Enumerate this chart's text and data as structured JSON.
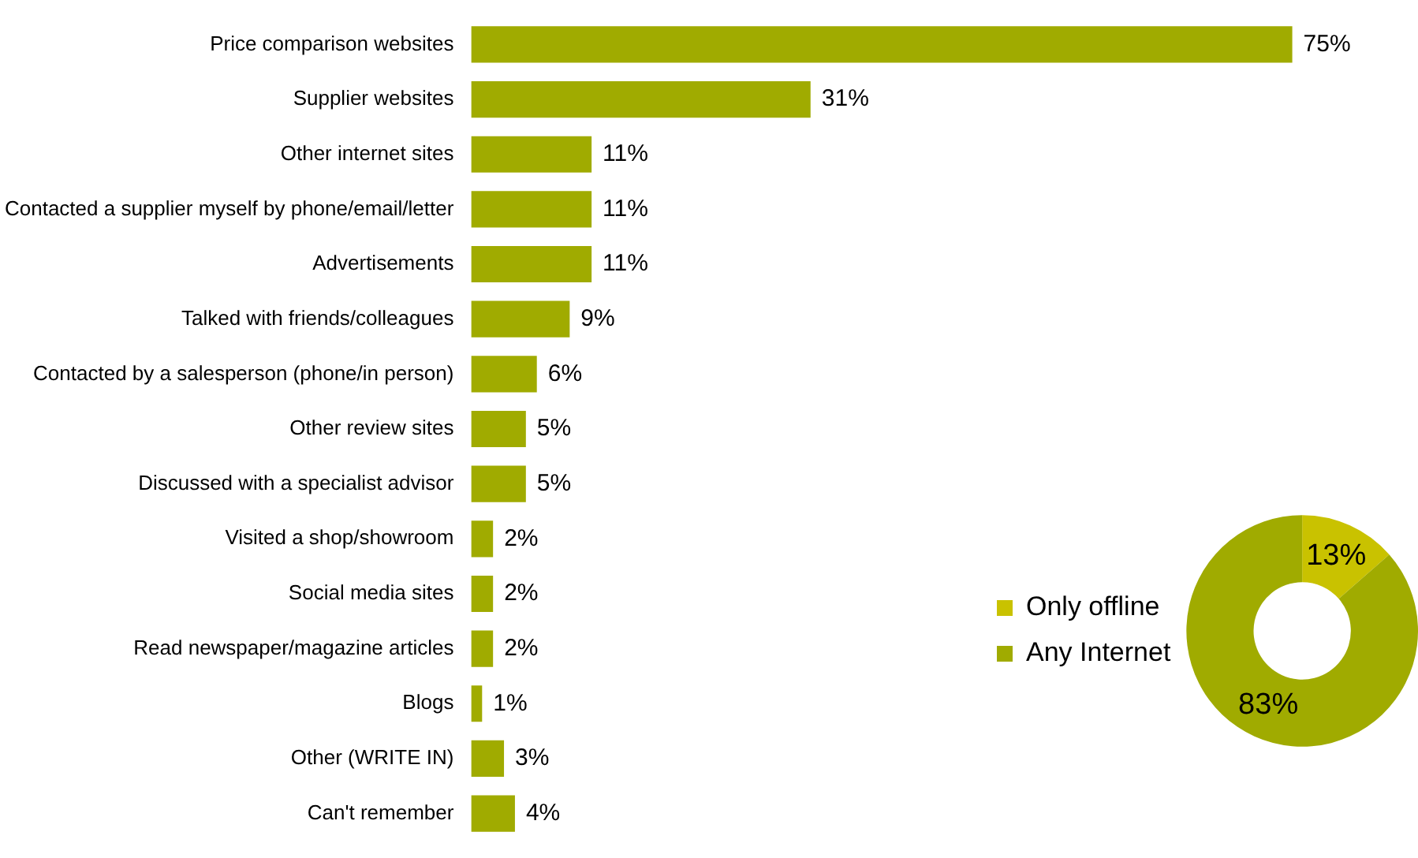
{
  "chart_data": [
    {
      "type": "bar",
      "orientation": "horizontal",
      "data_labels": true,
      "categories": [
        "Price comparison websites",
        "Supplier websites",
        "Other internet sites",
        "Contacted a supplier myself by phone/email/letter",
        "Advertisements",
        "Talked with friends/colleagues",
        "Contacted by a salesperson (phone/in person)",
        "Other review sites",
        "Discussed with a specialist advisor",
        "Visited a shop/showroom",
        "Social media sites",
        "Read newspaper/magazine articles",
        "Blogs",
        "Other (WRITE IN)",
        "Can't remember"
      ],
      "values": [
        75,
        31,
        11,
        11,
        11,
        9,
        6,
        5,
        5,
        2,
        2,
        2,
        1,
        3,
        4
      ],
      "value_labels": [
        "75%",
        "31%",
        "11%",
        "11%",
        "11%",
        "9%",
        "6%",
        "5%",
        "5%",
        "2%",
        "2%",
        "2%",
        "1%",
        "3%",
        "4%"
      ],
      "color": "#a0ab00"
    },
    {
      "type": "donut",
      "legend": "left",
      "categories": [
        "Only offline",
        "Any Internet"
      ],
      "values": [
        13,
        83
      ],
      "value_labels": [
        "13%",
        "83%"
      ],
      "colors": [
        "#c9c200",
        "#a0ab00"
      ]
    }
  ]
}
